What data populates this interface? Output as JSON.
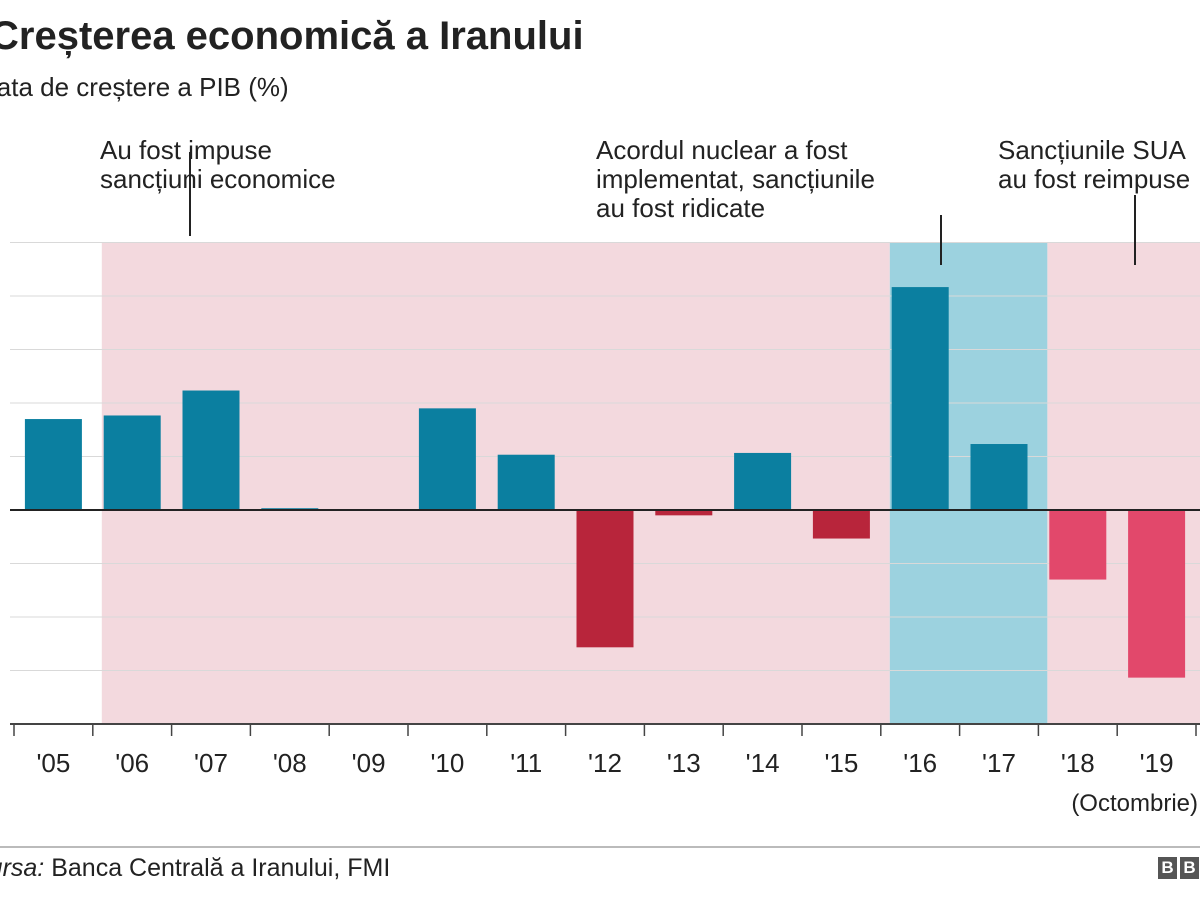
{
  "title": "Creșterea economică a Iranului",
  "subtitle": "Rata de creștere a PIB (%)",
  "annotations": [
    {
      "text1": "Au fost impuse",
      "text2": "sancțiuni economice"
    },
    {
      "text1": "Acordul nuclear a fost",
      "text2": "implementat, sancțiunile",
      "text3": "au fost ridicate"
    },
    {
      "text1": "Sancțiunile SUA",
      "text2": "au fost reimpuse"
    }
  ],
  "note": "(Octombrie)",
  "source_label": "Sursa:",
  "source_text": " Banca Centrală a Iranului, FMI",
  "logo": "BBC",
  "colors": {
    "positive": "#0b7fa0",
    "negative_sanctions": "#b8253b",
    "negative_reimposed": "#e2486b",
    "sanctions_background": "#f3d9de",
    "deal_background": "#9cd2df"
  },
  "chart_data": {
    "type": "bar",
    "title": "Creșterea economică a Iranului",
    "ylabel": "Rata de creștere a PIB (%)",
    "categories": [
      "'05",
      "'06",
      "'07",
      "'08",
      "'09",
      "'10",
      "'11",
      "'12",
      "'13",
      "'14",
      "'15",
      "'16",
      "'17",
      "'18",
      "'19"
    ],
    "values": [
      5.1,
      5.3,
      6.7,
      0.1,
      0.0,
      5.7,
      3.1,
      -7.7,
      -0.3,
      3.2,
      -1.6,
      12.5,
      3.7,
      -3.9,
      -9.4
    ],
    "ylim": [
      -12,
      15
    ],
    "grid": true,
    "shaded_periods": [
      {
        "from": "'06",
        "to": "'15",
        "label": "Au fost impuse sancțiuni economice",
        "color": "#f3d9de"
      },
      {
        "from": "'16",
        "to": "'17",
        "label": "Acordul nuclear a fost implementat, sancțiunile au fost ridicate",
        "color": "#9cd2df"
      },
      {
        "from": "'18",
        "to": "'19",
        "label": "Sancțiunile SUA au fost reimpuse",
        "color": "#f3d9de"
      }
    ]
  }
}
